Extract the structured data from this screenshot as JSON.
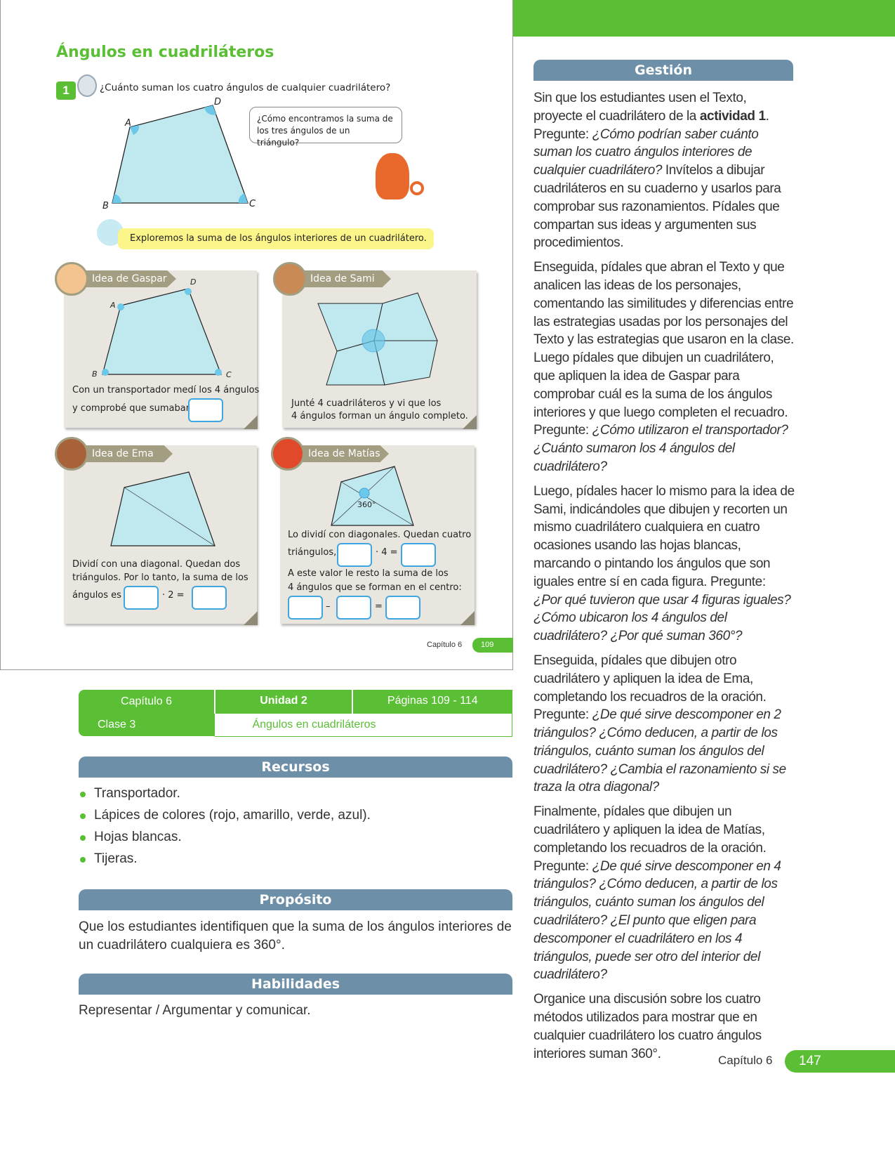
{
  "student_page": {
    "title": "Ángulos en cuadriláteros",
    "activity_number": "1",
    "question": "¿Cuánto suman los cuatro ángulos de cualquier cuadrilátero?",
    "vertices": {
      "a": "A",
      "b": "B",
      "c": "C",
      "d": "D"
    },
    "speech_bubble": "¿Cómo encontramos la suma de los tres ángulos de un triángulo?",
    "explore_banner": "Exploremos la suma de los ángulos interiores de un cuadrilátero.",
    "cards": {
      "gaspar": {
        "tag": "Idea de Gaspar",
        "text1": "Con un transportador medí los 4 ángulos",
        "text2": "y comprobé que sumaban"
      },
      "sami": {
        "tag": "Idea de Sami",
        "text1": "Junté 4 cuadriláteros y vi que los",
        "text2": "4 ángulos forman un ángulo completo."
      },
      "ema": {
        "tag": "Idea de Ema",
        "text1": "Dividí con una diagonal. Quedan dos",
        "text2": "triángulos. Por lo tanto, la suma de los",
        "text3": "ángulos es",
        "op": "· 2 ="
      },
      "matias": {
        "tag": "Idea de Matías",
        "angle_label": "360°",
        "text1": "Lo dividí con diagonales. Quedan cuatro",
        "text2": "triángulos,",
        "op": "· 4 =",
        "text3": "A este valor le resto la suma de los",
        "text4": "4 ángulos que se forman en el centro:",
        "minus": "–",
        "equals": "="
      }
    },
    "footer_chapter": "Capítulo 6",
    "footer_page": "109"
  },
  "info_table": {
    "chapter": "Capítulo 6",
    "unit": "Unidad 2",
    "pages": "Páginas 109 - 114",
    "class": "Clase 3",
    "class_title": "Ángulos en cuadriláteros"
  },
  "recursos": {
    "heading": "Recursos",
    "items": [
      "Transportador.",
      "Lápices de colores (rojo, amarillo, verde, azul).",
      "Hojas blancas.",
      "Tijeras."
    ]
  },
  "proposito": {
    "heading": "Propósito",
    "text": "Que los estudiantes identifiquen que la suma de los ángulos interiores de un cuadrilátero cualquiera es 360°."
  },
  "habilidades": {
    "heading": "Habilidades",
    "text": "Representar / Argumentar y comunicar."
  },
  "gestion": {
    "heading": "Gestión",
    "p1a": "Sin que los estudiantes usen el Texto, proyecte el cuadrilátero de la ",
    "p1b": "actividad 1",
    "p1c": ". Pregunte: ",
    "p1d": "¿Cómo podrían saber cuánto suman los cuatro ángulos interiores de cualquier cuadrilátero?",
    "p1e": " Invítelos a dibujar cuadriláteros en su cuaderno y usarlos para comprobar sus razonamientos. Pídales que compartan sus ideas y argumenten sus procedimientos.",
    "p2a": "Enseguida, pídales que abran el Texto y que analicen las ideas de los personajes, comentando las similitudes y diferencias entre las estrategias usadas por los personajes del Texto y las estrategias que usaron en la clase. Luego pídales que dibujen un cuadrilátero, que apliquen la idea de Gaspar para comprobar cuál es la suma de los ángulos interiores y que luego completen el recuadro. Pregunte: ",
    "p2b": "¿Cómo utilizaron el transportador? ¿Cuánto sumaron los 4 ángulos del cuadrilátero?",
    "p3a": "Luego, pídales hacer lo mismo para la idea de Sami, indicándoles que dibujen y recorten un mismo cuadrilátero cualquiera en cuatro ocasiones usando las hojas blancas, marcando o pintando los ángulos que son iguales entre sí en cada figura. Pregunte: ",
    "p3b": "¿Por qué tuvieron que usar 4 figuras iguales? ¿Cómo ubicaron los 4 ángulos del cuadrilátero? ¿Por qué suman 360°?",
    "p4a": "Enseguida, pídales que dibujen otro cuadrilátero y apliquen la idea de Ema, completando los recuadros de la oración. Pregunte: ",
    "p4b": "¿De qué sirve descomponer en 2 triángulos? ¿Cómo deducen, a partir de los triángulos, cuánto suman los ángulos del cuadrilátero? ¿Cambia el razonamiento si se traza la otra diagonal?",
    "p5a": "Finalmente, pídales que dibujen un cuadrilátero y apliquen la idea de Matías, completando los recuadros de la oración. Pregunte: ",
    "p5b": "¿De qué sirve descomponer en 4 triángulos? ¿Cómo deducen, a partir de los triángulos, cuánto suman los ángulos del cuadrilátero? ¿El punto que eligen para descomponer el cuadrilátero en los 4 triángulos, puede ser otro del interior del cuadrilátero?",
    "p6": "Organice una discusión sobre los cuatro métodos utilizados para mostrar que en cualquier cuadrilátero los cuatro ángulos interiores suman 360°."
  },
  "footer": {
    "chapter": "Capítulo 6",
    "page": "147"
  },
  "colors": {
    "green": "#5abf35",
    "slate": "#6d8fa8",
    "shape_fill": "#c0e8ef",
    "card": "#e9e6e0",
    "tag": "#a39d82",
    "box_border": "#3ea6e0",
    "banner": "#fbf58a"
  }
}
